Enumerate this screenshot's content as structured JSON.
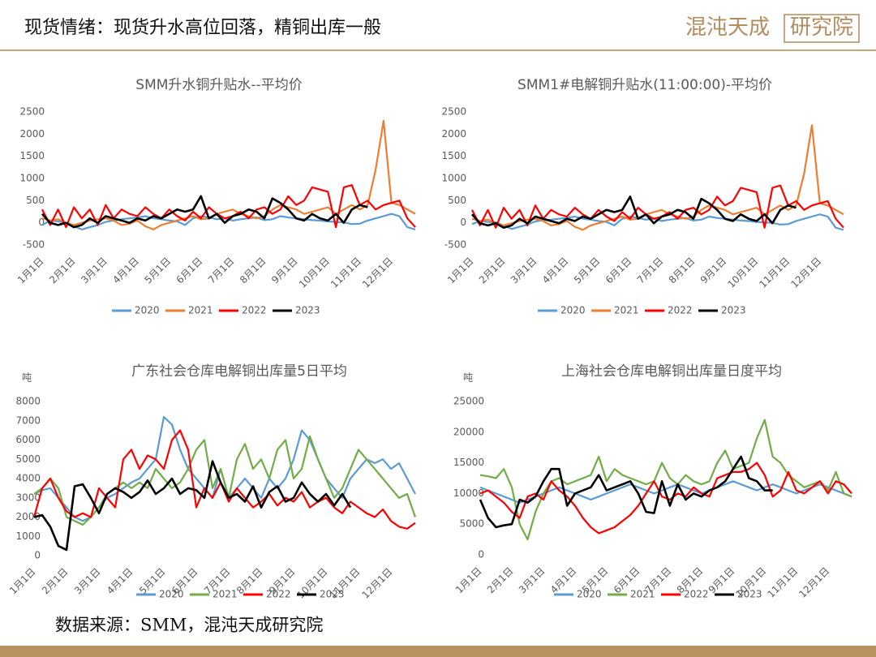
{
  "header": {
    "title": "现货情绪：现货升水高位回落，精铜出库一般",
    "logo": "混沌天成",
    "logo_box": "研究院"
  },
  "source": "数据来源：SMM，混沌天成研究院",
  "chart_data": [
    {
      "type": "line",
      "title": "SMM升水铜升贴水--平均价",
      "categories": [
        "1月1日",
        null,
        null,
        null,
        "2月1日",
        null,
        null,
        null,
        "3月1日",
        null,
        null,
        null,
        "4月1日",
        null,
        null,
        null,
        "5月1日",
        null,
        null,
        null,
        "6月1日",
        null,
        null,
        null,
        "7月1日",
        null,
        null,
        null,
        "8月1日",
        null,
        null,
        null,
        "9月1日",
        null,
        null,
        null,
        "10月1日",
        null,
        null,
        null,
        "11月1日",
        null,
        null,
        null,
        "12月1日",
        null,
        null,
        null
      ],
      "ylim": [
        -500,
        2500
      ],
      "yticks": [
        -500,
        0,
        500,
        1000,
        1500,
        2000,
        2500
      ],
      "grid": false,
      "legend": "bottom",
      "series": [
        {
          "name": "2020",
          "color": "#5b9bd5",
          "values": [
            -50,
            50,
            30,
            0,
            -80,
            -150,
            -100,
            -50,
            20,
            50,
            80,
            100,
            120,
            150,
            100,
            80,
            50,
            30,
            -50,
            100,
            150,
            120,
            80,
            100,
            50,
            80,
            100,
            120,
            60,
            80,
            150,
            120,
            100,
            80,
            60,
            50,
            30,
            20,
            10,
            -30,
            -20,
            50,
            100,
            150,
            200,
            150,
            -100,
            -150
          ]
        },
        {
          "name": "2021",
          "color": "#ed7d31",
          "values": [
            100,
            50,
            80,
            0,
            -50,
            0,
            50,
            80,
            100,
            50,
            -50,
            -20,
            50,
            -80,
            -150,
            -50,
            0,
            50,
            100,
            150,
            80,
            100,
            200,
            250,
            300,
            200,
            150,
            100,
            150,
            300,
            400,
            350,
            300,
            200,
            250,
            300,
            350,
            200,
            300,
            400,
            300,
            400,
            1200,
            2300,
            450,
            400,
            300,
            200
          ]
        },
        {
          "name": "2022",
          "color": "#ff0000",
          "values": [
            300,
            -50,
            300,
            -100,
            350,
            100,
            300,
            -50,
            400,
            100,
            300,
            200,
            150,
            350,
            200,
            100,
            300,
            150,
            50,
            250,
            100,
            350,
            200,
            100,
            150,
            250,
            100,
            300,
            350,
            200,
            300,
            600,
            400,
            500,
            800,
            750,
            700,
            -100,
            800,
            850,
            400,
            500,
            300,
            400,
            450,
            500,
            100,
            -100
          ]
        },
        {
          "name": "2023",
          "color": "#000000",
          "values": [
            200,
            0,
            -50,
            0,
            -100,
            -50,
            100,
            0,
            150,
            100,
            50,
            0,
            100,
            50,
            150,
            100,
            200,
            300,
            250,
            300,
            600,
            100,
            200,
            0,
            150,
            200,
            300,
            250,
            100,
            550,
            450,
            300,
            100,
            50,
            200,
            100,
            50,
            200,
            0,
            300,
            400,
            350,
            null,
            null,
            null,
            null,
            null,
            null
          ]
        }
      ]
    },
    {
      "type": "line",
      "title": "SMM1#电解铜升贴水(11:00:00)-平均价",
      "categories": [
        "1月1日",
        null,
        null,
        null,
        "2月1日",
        null,
        null,
        null,
        "3月1日",
        null,
        null,
        null,
        "4月1日",
        null,
        null,
        null,
        "5月1日",
        null,
        null,
        null,
        "6月1日",
        null,
        null,
        null,
        "7月1日",
        null,
        null,
        null,
        "8月1日",
        null,
        null,
        null,
        "9月1日",
        null,
        null,
        null,
        "10月1日",
        null,
        null,
        null,
        "11月1日",
        null,
        null,
        null,
        "12月1日",
        null,
        null,
        null
      ],
      "ylim": [
        -500,
        2500
      ],
      "yticks": [
        -500,
        0,
        500,
        1000,
        1500,
        2000,
        2500
      ],
      "grid": false,
      "legend": "bottom",
      "series": [
        {
          "name": "2020",
          "color": "#5b9bd5",
          "values": [
            -30,
            40,
            20,
            10,
            -60,
            -140,
            -90,
            -40,
            30,
            60,
            70,
            90,
            110,
            140,
            90,
            70,
            40,
            20,
            -60,
            90,
            140,
            110,
            70,
            90,
            40,
            70,
            90,
            110,
            50,
            70,
            140,
            110,
            90,
            70,
            50,
            40,
            20,
            10,
            0,
            -40,
            -30,
            40,
            90,
            140,
            190,
            140,
            -110,
            -160
          ]
        },
        {
          "name": "2021",
          "color": "#ed7d31",
          "values": [
            90,
            40,
            70,
            -10,
            -60,
            -10,
            40,
            70,
            90,
            40,
            -60,
            -30,
            40,
            -90,
            -160,
            -60,
            -10,
            40,
            90,
            140,
            70,
            90,
            190,
            240,
            290,
            190,
            140,
            90,
            140,
            290,
            390,
            340,
            290,
            190,
            240,
            290,
            340,
            190,
            290,
            390,
            290,
            390,
            1100,
            2200,
            440,
            390,
            290,
            190
          ]
        },
        {
          "name": "2022",
          "color": "#ff0000",
          "values": [
            290,
            -60,
            290,
            -110,
            340,
            90,
            290,
            -60,
            390,
            90,
            290,
            190,
            140,
            340,
            190,
            90,
            290,
            140,
            40,
            240,
            90,
            340,
            190,
            90,
            140,
            240,
            90,
            290,
            340,
            190,
            290,
            590,
            390,
            490,
            790,
            740,
            690,
            -110,
            790,
            840,
            390,
            490,
            290,
            390,
            440,
            490,
            90,
            -110
          ]
        },
        {
          "name": "2023",
          "color": "#000000",
          "values": [
            190,
            -10,
            -60,
            -10,
            -110,
            -60,
            90,
            -10,
            140,
            90,
            40,
            -10,
            90,
            40,
            140,
            90,
            190,
            290,
            240,
            290,
            590,
            90,
            190,
            -10,
            140,
            190,
            290,
            240,
            90,
            540,
            440,
            290,
            90,
            40,
            190,
            90,
            40,
            190,
            -10,
            290,
            390,
            340,
            null,
            null,
            null,
            null,
            null,
            null
          ]
        }
      ]
    },
    {
      "type": "line",
      "title": "广东社会仓库电解铜出库量5日平均",
      "y_label": "吨",
      "categories": [
        "1月1日",
        null,
        null,
        null,
        "2月1日",
        null,
        null,
        null,
        "3月1日",
        null,
        null,
        null,
        "4月1日",
        null,
        null,
        null,
        "5月1日",
        null,
        null,
        null,
        "6月1日",
        null,
        null,
        null,
        "7月1日",
        null,
        null,
        null,
        "8月1日",
        null,
        null,
        null,
        "9月1日",
        null,
        null,
        null,
        "10月1日",
        null,
        null,
        null,
        "11月1日",
        null,
        null,
        null,
        "12月1日",
        null,
        null,
        null
      ],
      "ylim": [
        0,
        8000
      ],
      "yticks": [
        0,
        1000,
        2000,
        3000,
        4000,
        5000,
        6000,
        7000,
        8000
      ],
      "grid": false,
      "legend": "bottom",
      "series": [
        {
          "name": "2020",
          "color": "#5b9bd5",
          "values": [
            3200,
            3400,
            3500,
            3000,
            2500,
            2000,
            1800,
            2000,
            2500,
            3000,
            3200,
            3500,
            3800,
            4000,
            4500,
            5000,
            7200,
            6800,
            5500,
            4500,
            4000,
            3500,
            3000,
            4500,
            3000,
            3500,
            4000,
            3500,
            3000,
            4000,
            3500,
            4000,
            5000,
            6500,
            6000,
            5000,
            4000,
            3500,
            3000,
            4000,
            4500,
            5000,
            4800,
            5000,
            4500,
            4800,
            4000,
            3200
          ]
        },
        {
          "name": "2021",
          "color": "#70ad47",
          "values": [
            3200,
            3500,
            4000,
            3500,
            2000,
            1800,
            1600,
            2000,
            2500,
            3200,
            3500,
            3800,
            3500,
            3800,
            3500,
            4500,
            4000,
            3500,
            3800,
            4500,
            5500,
            6000,
            3500,
            4500,
            3000,
            5000,
            5800,
            4500,
            5000,
            4000,
            5500,
            6000,
            4000,
            4500,
            6200,
            5000,
            4000,
            3000,
            3500,
            4500,
            5500,
            5000,
            4500,
            4000,
            3500,
            3000,
            3200,
            2000
          ]
        },
        {
          "name": "2022",
          "color": "#ff0000",
          "values": [
            2000,
            3500,
            4000,
            3000,
            2300,
            2000,
            2200,
            2000,
            3500,
            3000,
            2500,
            5000,
            5500,
            4500,
            5200,
            5000,
            4500,
            6000,
            6500,
            5500,
            2500,
            3500,
            3000,
            3800,
            2800,
            3500,
            3000,
            2500,
            2800,
            3200,
            2600,
            3000,
            2800,
            3300,
            2500,
            2800,
            3000,
            2500,
            2200,
            2800,
            2500,
            2200,
            2000,
            2400,
            1800,
            1500,
            1400,
            1700
          ]
        },
        {
          "name": "2023",
          "color": "#000000",
          "values": [
            2000,
            2100,
            1500,
            500,
            300,
            3600,
            3700,
            3000,
            2200,
            3200,
            3500,
            3300,
            3000,
            3300,
            3900,
            3200,
            3500,
            4000,
            3200,
            3500,
            3400,
            3000,
            4900,
            3800,
            3000,
            3200,
            2800,
            3600,
            2500,
            3300,
            3600,
            2800,
            3000,
            3800,
            3200,
            2800,
            3200,
            2600,
            3200,
            2500,
            null,
            null,
            null,
            null,
            null,
            null,
            null,
            null
          ]
        }
      ]
    },
    {
      "type": "line",
      "title": "上海社会仓库电解铜出库量日度平均",
      "y_label": "吨",
      "categories": [
        "1月1日",
        null,
        null,
        null,
        "2月1日",
        null,
        null,
        null,
        "3月1日",
        null,
        null,
        null,
        "4月1日",
        null,
        null,
        null,
        "5月1日",
        null,
        null,
        null,
        "6月1日",
        null,
        null,
        null,
        "7月1日",
        null,
        null,
        null,
        "8月1日",
        null,
        null,
        null,
        "9月1日",
        null,
        null,
        null,
        "10月1日",
        null,
        null,
        null,
        "11月1日",
        null,
        null,
        null,
        "12月1日",
        null,
        null,
        null
      ],
      "ylim": [
        0,
        25000
      ],
      "yticks": [
        0,
        5000,
        10000,
        15000,
        20000,
        25000
      ],
      "grid": false,
      "legend": "bottom",
      "series": [
        {
          "name": "2020",
          "color": "#5b9bd5",
          "values": [
            11000,
            10500,
            10000,
            9500,
            9000,
            8500,
            9000,
            9500,
            10000,
            10500,
            11000,
            10500,
            10000,
            9500,
            9000,
            9500,
            10000,
            10500,
            11000,
            11500,
            11000,
            10500,
            10000,
            10500,
            11000,
            11500,
            11000,
            10500,
            10000,
            10500,
            11000,
            11500,
            12000,
            11500,
            11000,
            10500,
            11000,
            11500,
            11000,
            10500,
            10000,
            10500,
            11000,
            11500,
            11000,
            10500,
            10000,
            9500
          ]
        },
        {
          "name": "2021",
          "color": "#70ad47",
          "values": [
            13000,
            12800,
            12500,
            14000,
            11000,
            5000,
            2500,
            7000,
            10000,
            12000,
            12500,
            11500,
            12000,
            12500,
            13000,
            16000,
            12000,
            14000,
            13000,
            12500,
            12000,
            11500,
            12000,
            15000,
            12500,
            11500,
            13000,
            12000,
            11500,
            12000,
            15000,
            17000,
            14000,
            14500,
            15000,
            19000,
            22000,
            16000,
            15000,
            13000,
            12000,
            11000,
            11500,
            12000,
            10500,
            13500,
            10000,
            9500
          ]
        },
        {
          "name": "2022",
          "color": "#ff0000",
          "values": [
            10000,
            10500,
            9500,
            8500,
            7000,
            6000,
            9500,
            10000,
            9000,
            12000,
            10500,
            9500,
            8000,
            6000,
            4500,
            3500,
            4000,
            4500,
            5500,
            6500,
            8000,
            10000,
            12000,
            9500,
            9000,
            10000,
            9500,
            11000,
            10000,
            9500,
            12500,
            13000,
            13500,
            13500,
            14000,
            15000,
            13000,
            9500,
            10500,
            13500,
            10500,
            10000,
            11000,
            12000,
            10000,
            12000,
            11500,
            10000
          ]
        },
        {
          "name": "2023",
          "color": "#000000",
          "values": [
            9000,
            6000,
            4500,
            4800,
            5000,
            9000,
            8500,
            9500,
            12000,
            14000,
            14000,
            8000,
            10000,
            10500,
            11000,
            13000,
            10500,
            11000,
            11500,
            12000,
            10000,
            7000,
            6800,
            12000,
            8000,
            11500,
            9000,
            10000,
            9500,
            10500,
            11000,
            12000,
            14000,
            16000,
            12500,
            12000,
            10500,
            10500,
            null,
            null,
            null,
            null,
            null,
            null,
            null,
            null,
            null,
            null
          ]
        }
      ]
    }
  ]
}
